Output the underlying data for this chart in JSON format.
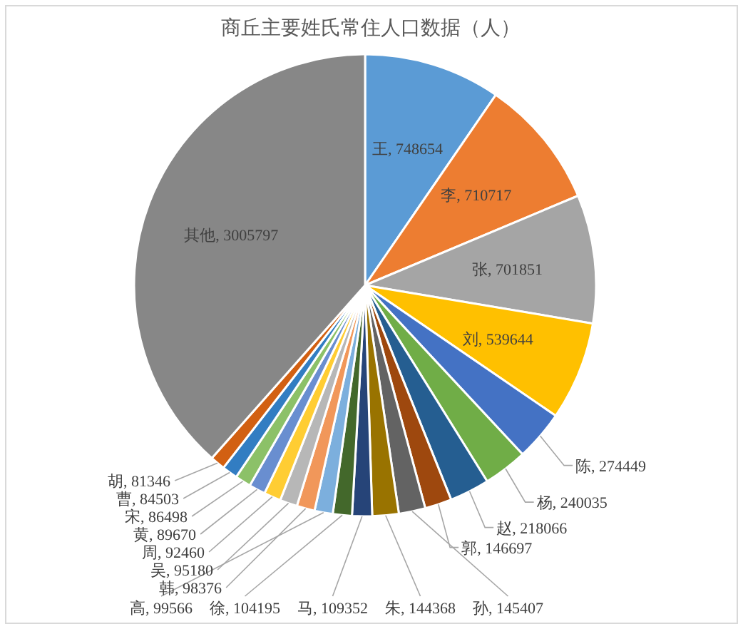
{
  "chart_data": {
    "type": "pie",
    "title": "商丘主要姓氏常住人口数据（人）",
    "categories": [
      "王",
      "李",
      "张",
      "刘",
      "陈",
      "杨",
      "赵",
      "郭",
      "孙",
      "朱",
      "马",
      "徐",
      "高",
      "韩",
      "吴",
      "周",
      "黄",
      "宋",
      "曹",
      "胡",
      "其他"
    ],
    "values": [
      748654,
      710717,
      701851,
      539644,
      274449,
      240035,
      218066,
      146697,
      145407,
      144368,
      109352,
      104195,
      99566,
      98376,
      95180,
      92460,
      89670,
      86498,
      84503,
      81346,
      3005797
    ],
    "colors": [
      "#5b9bd5",
      "#ed7d31",
      "#a5a5a5",
      "#ffc000",
      "#4472c4",
      "#70ad47",
      "#255e91",
      "#9e480e",
      "#636363",
      "#997300",
      "#264478",
      "#43682b",
      "#7cafdd",
      "#f1975a",
      "#b7b7b7",
      "#ffcd33",
      "#698ed0",
      "#8cc168",
      "#327dc2",
      "#d26012",
      "#878787"
    ],
    "value_labels": [
      ", 748654",
      ", 710717",
      ", 701851",
      ", 539644",
      ", 274449",
      ", 240035",
      ", 218066",
      ", 146697",
      ", 145407",
      ", 144368",
      ", 109352",
      ", 104195",
      ", 99566",
      ", 98376",
      ", 95180",
      ", 92460",
      ", 89670",
      ", 86498",
      ", 84503",
      ", 81346",
      ", 3005797"
    ],
    "legend": false
  }
}
